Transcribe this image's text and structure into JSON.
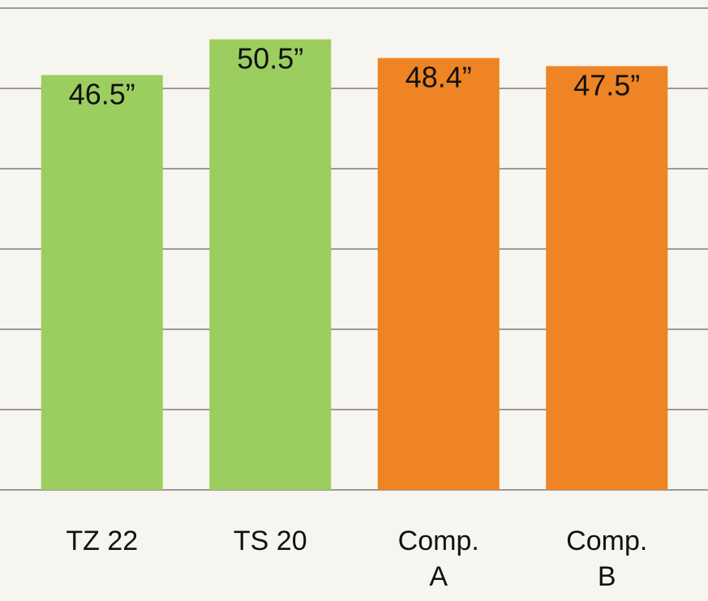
{
  "chart_data": {
    "type": "bar",
    "categories": [
      "TZ 22",
      "TS 20",
      "Comp.\nA",
      "Comp.\nB"
    ],
    "values": [
      46.5,
      50.5,
      48.4,
      47.5
    ],
    "value_labels": [
      "46.5”",
      "50.5”",
      "48.4”",
      "47.5”"
    ],
    "colors": [
      "#9ccd5f",
      "#9ccd5f",
      "#ee8424",
      "#ee8424"
    ],
    "ylim": [
      0,
      54
    ],
    "yticks": [
      0,
      9,
      18,
      27,
      36,
      45,
      54
    ],
    "grid": true
  }
}
